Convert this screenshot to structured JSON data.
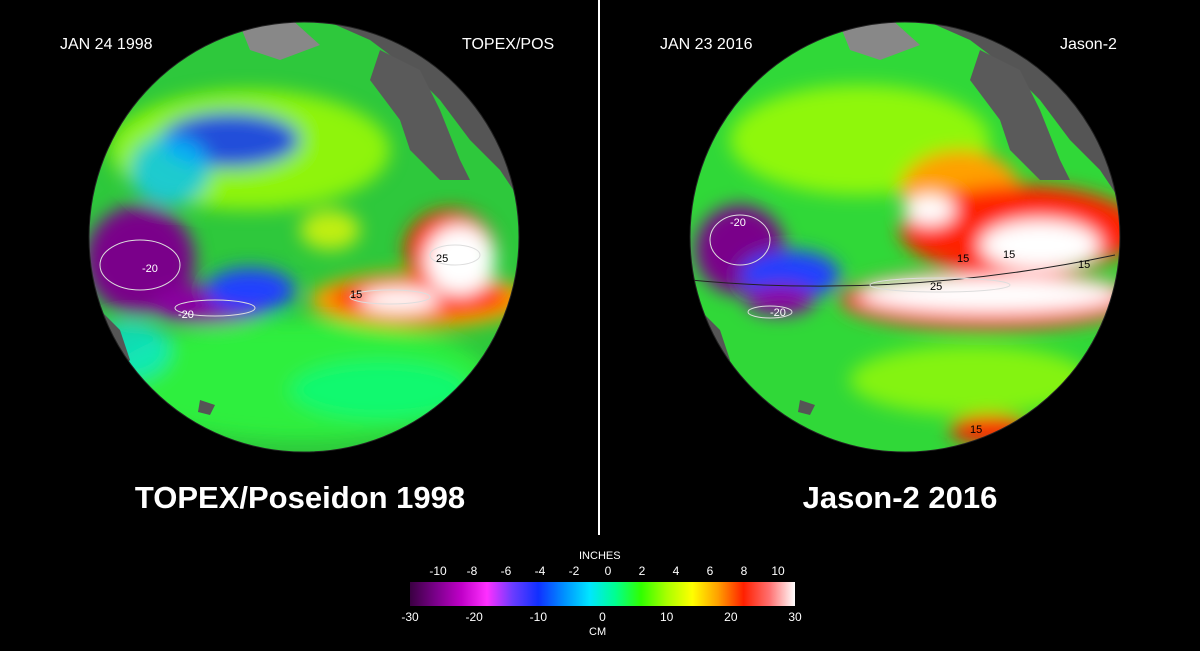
{
  "panels": [
    {
      "date": "JAN 24  1998",
      "mission": "TOPEX/POS",
      "caption": "TOPEX/Poseidon 1998",
      "contours": [
        "-20",
        "-20",
        "25",
        "15"
      ]
    },
    {
      "date": "JAN 23  2016",
      "mission": "Jason-2",
      "caption": "Jason-2  2016",
      "contours": [
        "-20",
        "-20",
        "15",
        "15",
        "25",
        "15",
        "15"
      ]
    }
  ],
  "colorbar": {
    "inches_label": "INCHES",
    "cm_label": "CM",
    "inch_ticks": [
      "-10",
      "-8",
      "-6",
      "-4",
      "-2",
      "0",
      "2",
      "4",
      "6",
      "8",
      "10"
    ],
    "cm_ticks": [
      "-30",
      "-20",
      "-10",
      "0",
      "10",
      "20",
      "30"
    ],
    "colors": [
      "#3a0042",
      "#7a008a",
      "#c000c8",
      "#ff30ff",
      "#6a3cff",
      "#1030ff",
      "#0090ff",
      "#00e6ff",
      "#00ff90",
      "#30ff00",
      "#a8ff00",
      "#ffff00",
      "#ffa000",
      "#ff2000",
      "#ff7070",
      "#ffffff"
    ]
  },
  "colors": {
    "land": "#555555",
    "background": "#000000",
    "divider": "#ffffff"
  }
}
